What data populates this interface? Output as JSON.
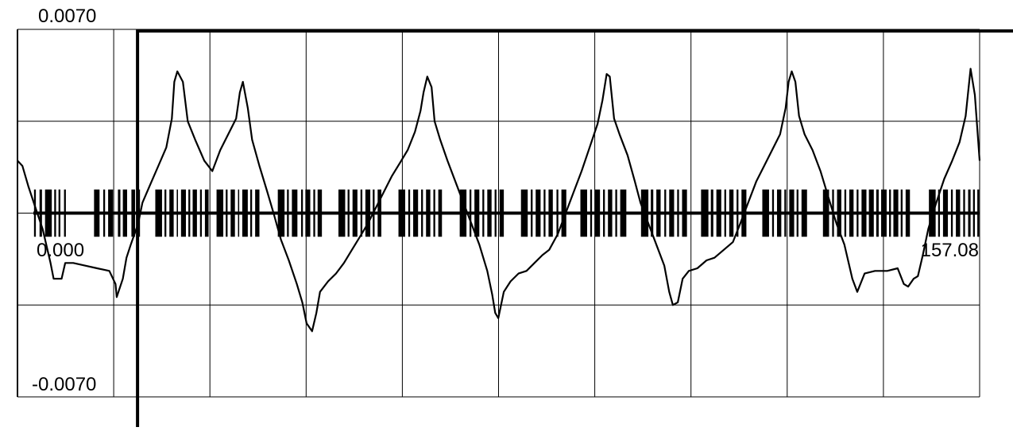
{
  "chart_data": {
    "type": "line",
    "title": "",
    "xlabel": "",
    "ylabel": "",
    "xlim": [
      0,
      157.08
    ],
    "ylim": [
      -0.007,
      0.007
    ],
    "grid": true,
    "labels": {
      "ymax": "0.0070",
      "ymin": "-0.0070",
      "xmin": "0.000",
      "xmax": "157.08"
    },
    "series": [
      {
        "values": [
          [
            0.0,
            0.002
          ],
          [
            0.8,
            0.0018
          ],
          [
            1.8,
            0.001
          ],
          [
            2.8,
            0.0003
          ],
          [
            4.1,
            -0.0006
          ],
          [
            5.4,
            -0.0019
          ],
          [
            5.9,
            -0.0025
          ],
          [
            7.2,
            -0.0025
          ],
          [
            7.8,
            -0.0019
          ],
          [
            9.1,
            -0.0019
          ],
          [
            11.0,
            -0.002
          ],
          [
            13.0,
            -0.0021
          ],
          [
            15.0,
            -0.0022
          ],
          [
            16.0,
            -0.0027
          ],
          [
            16.2,
            -0.0032
          ],
          [
            17.2,
            -0.0025
          ],
          [
            17.8,
            -0.0017
          ],
          [
            18.5,
            -0.0012
          ],
          [
            19.7,
            -0.0004
          ],
          [
            20.4,
            0.0004
          ],
          [
            21.7,
            0.0011
          ],
          [
            23.0,
            0.0018
          ],
          [
            24.3,
            0.0025
          ],
          [
            25.2,
            0.0036
          ],
          [
            25.6,
            0.005
          ],
          [
            26.1,
            0.0054
          ],
          [
            27.0,
            0.005
          ],
          [
            27.8,
            0.0035
          ],
          [
            29.0,
            0.0028
          ],
          [
            30.5,
            0.002
          ],
          [
            31.8,
            0.0016
          ],
          [
            33.1,
            0.0024
          ],
          [
            34.4,
            0.003
          ],
          [
            35.7,
            0.0036
          ],
          [
            36.3,
            0.0046
          ],
          [
            36.8,
            0.005
          ],
          [
            37.6,
            0.004
          ],
          [
            38.3,
            0.0028
          ],
          [
            39.5,
            0.0018
          ],
          [
            40.8,
            0.0008
          ],
          [
            41.8,
            0.0
          ],
          [
            43.0,
            -0.001
          ],
          [
            44.3,
            -0.0018
          ],
          [
            45.6,
            -0.0027
          ],
          [
            46.5,
            -0.0034
          ],
          [
            47.2,
            -0.0042
          ],
          [
            48.1,
            -0.0045
          ],
          [
            48.8,
            -0.0038
          ],
          [
            49.4,
            -0.003
          ],
          [
            50.7,
            -0.0026
          ],
          [
            52.0,
            -0.0023
          ],
          [
            53.3,
            -0.0019
          ],
          [
            54.6,
            -0.0014
          ],
          [
            55.9,
            -0.0009
          ],
          [
            57.2,
            -0.0004
          ],
          [
            58.5,
            0.0002
          ],
          [
            59.8,
            0.0008
          ],
          [
            61.1,
            0.0014
          ],
          [
            62.4,
            0.0019
          ],
          [
            63.7,
            0.0024
          ],
          [
            64.9,
            0.0031
          ],
          [
            65.8,
            0.0039
          ],
          [
            66.3,
            0.0046
          ],
          [
            66.9,
            0.0052
          ],
          [
            67.6,
            0.0048
          ],
          [
            68.1,
            0.0035
          ],
          [
            69.0,
            0.0028
          ],
          [
            70.2,
            0.002
          ],
          [
            71.5,
            0.0012
          ],
          [
            72.8,
            0.0004
          ],
          [
            74.1,
            -0.0004
          ],
          [
            75.4,
            -0.0012
          ],
          [
            76.7,
            -0.0022
          ],
          [
            77.5,
            -0.0031
          ],
          [
            78.0,
            -0.0038
          ],
          [
            78.5,
            -0.004
          ],
          [
            79.4,
            -0.003
          ],
          [
            80.5,
            -0.0026
          ],
          [
            81.8,
            -0.0023
          ],
          [
            83.1,
            -0.0022
          ],
          [
            84.4,
            -0.0019
          ],
          [
            85.7,
            -0.0016
          ],
          [
            86.8,
            -0.0014
          ],
          [
            88.2,
            -0.0008
          ],
          [
            89.5,
            0.0
          ],
          [
            90.8,
            0.0008
          ],
          [
            92.1,
            0.0016
          ],
          [
            93.4,
            0.0025
          ],
          [
            94.7,
            0.0034
          ],
          [
            95.5,
            0.0043
          ],
          [
            96.2,
            0.0053
          ],
          [
            96.7,
            0.0052
          ],
          [
            97.4,
            0.0036
          ],
          [
            98.3,
            0.003
          ],
          [
            99.6,
            0.0022
          ],
          [
            100.8,
            0.0012
          ],
          [
            101.7,
            0.0004
          ],
          [
            103.0,
            -0.0004
          ],
          [
            104.3,
            -0.0012
          ],
          [
            105.6,
            -0.002
          ],
          [
            106.4,
            -0.003
          ],
          [
            107.0,
            -0.0035
          ],
          [
            107.8,
            -0.0034
          ],
          [
            108.6,
            -0.0025
          ],
          [
            109.6,
            -0.0022
          ],
          [
            111.0,
            -0.0021
          ],
          [
            112.5,
            -0.0018
          ],
          [
            113.8,
            -0.0017
          ],
          [
            115.3,
            -0.0014
          ],
          [
            116.8,
            -0.0011
          ],
          [
            118.0,
            -0.0004
          ],
          [
            119.3,
            0.0004
          ],
          [
            120.6,
            0.0012
          ],
          [
            121.9,
            0.0018
          ],
          [
            123.2,
            0.0024
          ],
          [
            124.5,
            0.003
          ],
          [
            125.4,
            0.004
          ],
          [
            125.9,
            0.005
          ],
          [
            126.4,
            0.0054
          ],
          [
            127.0,
            0.005
          ],
          [
            127.6,
            0.0037
          ],
          [
            128.5,
            0.003
          ],
          [
            129.8,
            0.0024
          ],
          [
            131.1,
            0.0016
          ],
          [
            132.4,
            0.0006
          ],
          [
            133.7,
            -0.0004
          ],
          [
            135.0,
            -0.0012
          ],
          [
            136.3,
            -0.0025
          ],
          [
            137.1,
            -0.003
          ],
          [
            138.3,
            -0.0023
          ],
          [
            140.0,
            -0.0022
          ],
          [
            142.0,
            -0.0022
          ],
          [
            143.7,
            -0.0021
          ],
          [
            144.7,
            -0.0027
          ],
          [
            145.4,
            -0.0028
          ],
          [
            146.3,
            -0.0025
          ],
          [
            147.0,
            -0.0024
          ],
          [
            147.8,
            -0.0016
          ],
          [
            148.7,
            -0.0006
          ],
          [
            150.0,
            0.0004
          ],
          [
            151.3,
            0.0013
          ],
          [
            152.6,
            0.002
          ],
          [
            153.8,
            0.0027
          ],
          [
            154.8,
            0.0037
          ],
          [
            155.6,
            0.0055
          ],
          [
            156.3,
            0.0045
          ],
          [
            157.08,
            0.002
          ]
        ]
      }
    ],
    "pulse_bars": {
      "ymin": -0.0009,
      "ymax": 0.0009,
      "intervals": [
        [
          2.7,
          3.0
        ],
        [
          3.6,
          4.0
        ],
        [
          4.5,
          5.6
        ],
        [
          6.0,
          6.3
        ],
        [
          6.7,
          7.0
        ],
        [
          7.6,
          7.9
        ],
        [
          12.5,
          13.4
        ],
        [
          14.0,
          14.3
        ],
        [
          14.8,
          15.6
        ],
        [
          16.4,
          16.8
        ],
        [
          17.2,
          17.9
        ],
        [
          18.6,
          19.2
        ],
        [
          19.6,
          20.0
        ],
        [
          22.5,
          23.6
        ],
        [
          24.0,
          24.3
        ],
        [
          24.8,
          25.5
        ],
        [
          26.0,
          26.2
        ],
        [
          26.7,
          27.5
        ],
        [
          27.9,
          28.2
        ],
        [
          28.6,
          29.3
        ],
        [
          29.8,
          30.1
        ],
        [
          30.6,
          31.2
        ],
        [
          32.5,
          33.6
        ],
        [
          34.0,
          34.3
        ],
        [
          34.8,
          35.5
        ],
        [
          36.0,
          36.2
        ],
        [
          36.7,
          37.6
        ],
        [
          38.0,
          38.3
        ],
        [
          38.8,
          39.5
        ],
        [
          42.5,
          43.6
        ],
        [
          44.0,
          44.3
        ],
        [
          44.8,
          45.7
        ],
        [
          46.3,
          46.6
        ],
        [
          47.0,
          47.8
        ],
        [
          48.3,
          48.6
        ],
        [
          49.0,
          49.7
        ],
        [
          52.4,
          53.5
        ],
        [
          53.9,
          54.2
        ],
        [
          54.7,
          55.5
        ],
        [
          56.0,
          56.3
        ],
        [
          56.8,
          57.6
        ],
        [
          58.0,
          58.3
        ],
        [
          58.8,
          59.4
        ],
        [
          62.2,
          63.3
        ],
        [
          63.8,
          64.1
        ],
        [
          64.6,
          65.4
        ],
        [
          65.9,
          66.2
        ],
        [
          66.7,
          67.4
        ],
        [
          67.9,
          68.2
        ],
        [
          68.7,
          69.3
        ],
        [
          72.2,
          73.3
        ],
        [
          73.8,
          74.1
        ],
        [
          74.6,
          75.4
        ],
        [
          75.9,
          76.2
        ],
        [
          76.7,
          77.4
        ],
        [
          77.9,
          78.2
        ],
        [
          78.7,
          79.4
        ],
        [
          82.2,
          83.3
        ],
        [
          83.8,
          84.1
        ],
        [
          84.6,
          85.4
        ],
        [
          85.9,
          86.2
        ],
        [
          86.7,
          87.4
        ],
        [
          88.0,
          88.3
        ],
        [
          88.8,
          89.6
        ],
        [
          91.9,
          93.0
        ],
        [
          93.5,
          93.8
        ],
        [
          94.3,
          95.1
        ],
        [
          95.6,
          95.9
        ],
        [
          96.4,
          97.1
        ],
        [
          97.6,
          97.9
        ],
        [
          98.4,
          99.4
        ],
        [
          101.8,
          103.0
        ],
        [
          103.4,
          103.8
        ],
        [
          104.3,
          105.0
        ],
        [
          105.6,
          105.9
        ],
        [
          106.4,
          107.2
        ],
        [
          107.7,
          108.0
        ],
        [
          108.5,
          109.3
        ],
        [
          111.6,
          112.8
        ],
        [
          113.2,
          113.6
        ],
        [
          114.1,
          114.9
        ],
        [
          115.4,
          115.7
        ],
        [
          116.2,
          116.9
        ],
        [
          117.4,
          117.7
        ],
        [
          118.2,
          119.0
        ],
        [
          121.6,
          122.7
        ],
        [
          123.2,
          123.5
        ],
        [
          124.0,
          124.7
        ],
        [
          125.2,
          125.5
        ],
        [
          126.0,
          126.8
        ],
        [
          127.2,
          127.5
        ],
        [
          128.0,
          128.9
        ],
        [
          131.5,
          132.5
        ],
        [
          133.0,
          133.3
        ],
        [
          133.8,
          134.5
        ],
        [
          135.0,
          135.3
        ],
        [
          135.8,
          136.5
        ],
        [
          137.0,
          137.3
        ],
        [
          137.8,
          138.6
        ],
        [
          139.0,
          139.8
        ],
        [
          140.2,
          140.6
        ],
        [
          141.0,
          141.9
        ],
        [
          142.3,
          142.6
        ],
        [
          143.0,
          143.8
        ],
        [
          144.2,
          144.5
        ],
        [
          145.0,
          145.7
        ],
        [
          148.8,
          149.9
        ],
        [
          150.3,
          150.6
        ],
        [
          151.1,
          151.9
        ],
        [
          152.4,
          152.7
        ],
        [
          153.2,
          153.9
        ],
        [
          154.4,
          154.7
        ],
        [
          155.2,
          155.6
        ],
        [
          156.0,
          156.3
        ],
        [
          156.7,
          157.0
        ]
      ]
    }
  }
}
